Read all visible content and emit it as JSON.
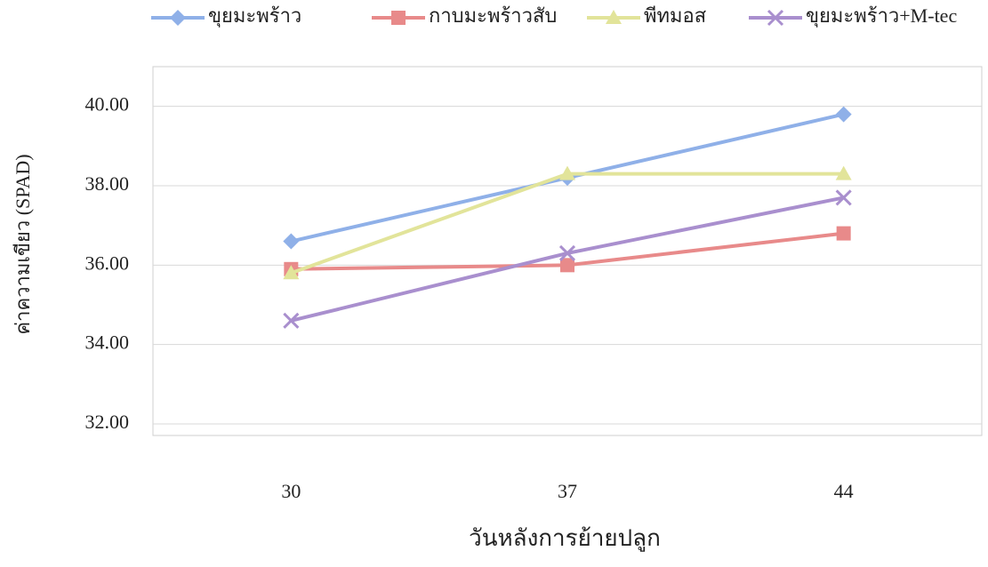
{
  "chart_data": {
    "type": "line",
    "x_label": "วันหลังการย้ายปลูก",
    "y_label": "ค่าความเขียว (SPAD)",
    "categories": [
      "30",
      "37",
      "44"
    ],
    "series": [
      {
        "name": "ขุยมะพร้าว",
        "color": "#8fb0e8",
        "marker": "diamond",
        "values": [
          36.6,
          38.2,
          39.8
        ]
      },
      {
        "name": "กาบมะพร้าวสับ",
        "color": "#e88a8a",
        "marker": "square",
        "values": [
          35.9,
          36.0,
          36.8
        ]
      },
      {
        "name": "พีทมอส",
        "color": "#e2e49a",
        "marker": "triangle",
        "values": [
          35.8,
          38.3,
          38.3
        ]
      },
      {
        "name": "ขุยมะพร้าว+M-tec",
        "color": "#a98fce",
        "marker": "x",
        "values": [
          34.6,
          36.3,
          37.7
        ]
      }
    ],
    "ylim": [
      32,
      41
    ],
    "yticks": [
      {
        "value": 32,
        "label": "32.00"
      },
      {
        "value": 34,
        "label": "34.00"
      },
      {
        "value": 36,
        "label": "36.00"
      },
      {
        "value": 38,
        "label": "38.00"
      },
      {
        "value": 40,
        "label": "40.00"
      }
    ],
    "grid": true,
    "legend": "top"
  }
}
